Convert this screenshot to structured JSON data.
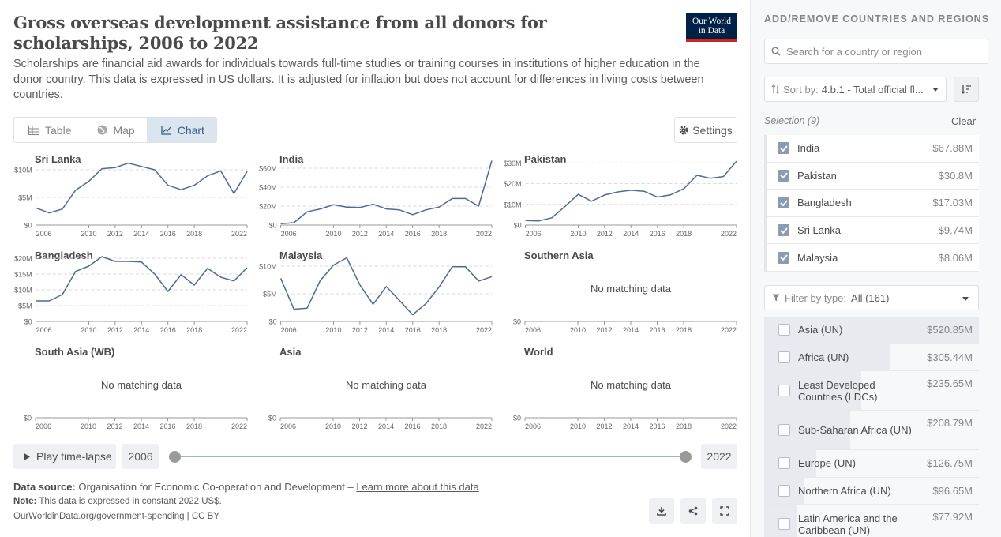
{
  "header": {
    "title": "Gross overseas development assistance from all donors for scholarships, 2006 to 2022",
    "subtitle": "Scholarships are financial aid awards for individuals towards full-time studies or training courses in institutions of higher education in the donor country. This data is expressed in US dollars. It is adjusted for inflation but does not account for differences in living costs between countries.",
    "logo_line1": "Our World",
    "logo_line2": "in Data"
  },
  "tabs": [
    {
      "label": "Table",
      "icon": "table-icon",
      "active": false
    },
    {
      "label": "Map",
      "icon": "globe-icon",
      "active": false
    },
    {
      "label": "Chart",
      "icon": "chart-line-icon",
      "active": true
    }
  ],
  "settings_label": "Settings",
  "no_data_text": "No matching data",
  "chart_data": [
    {
      "type": "line",
      "title": "Sri Lanka",
      "x": [
        2006,
        2007,
        2008,
        2009,
        2010,
        2011,
        2012,
        2013,
        2014,
        2015,
        2016,
        2017,
        2018,
        2019,
        2020,
        2021,
        2022
      ],
      "values": [
        3.1,
        2.2,
        2.9,
        6.3,
        7.9,
        10.2,
        10.4,
        11.2,
        10.6,
        10.0,
        7.2,
        6.4,
        7.2,
        8.9,
        9.8,
        5.7,
        9.7
      ],
      "unit": "M",
      "yticks": [
        "$0",
        "$5M",
        "$10M"
      ],
      "ylim": [
        0,
        12
      ],
      "xticks": [
        2006,
        2010,
        2012,
        2014,
        2016,
        2018,
        2022
      ]
    },
    {
      "type": "line",
      "title": "India",
      "x": [
        2006,
        2007,
        2008,
        2009,
        2010,
        2011,
        2012,
        2013,
        2014,
        2015,
        2016,
        2017,
        2018,
        2019,
        2020,
        2021,
        2022
      ],
      "values": [
        1.5,
        2.5,
        14,
        17,
        21.5,
        19,
        18.5,
        22,
        17,
        16,
        11,
        16,
        19,
        28,
        28,
        20,
        67.9
      ],
      "unit": "M",
      "yticks": [
        "$0",
        "$20M",
        "$40M",
        "$60M"
      ],
      "ylim": [
        0,
        70
      ],
      "xticks": [
        2006,
        2010,
        2012,
        2014,
        2016,
        2018,
        2022
      ]
    },
    {
      "type": "line",
      "title": "Pakistan",
      "x": [
        2006,
        2007,
        2008,
        2009,
        2010,
        2011,
        2012,
        2013,
        2014,
        2015,
        2016,
        2017,
        2018,
        2019,
        2020,
        2021,
        2022
      ],
      "values": [
        2.2,
        2.0,
        3.5,
        9.0,
        14.8,
        11.5,
        14.5,
        16.0,
        16.8,
        16.3,
        13.5,
        14.6,
        17.5,
        24.0,
        22.6,
        23.4,
        30.8
      ],
      "unit": "M",
      "yticks": [
        "$0",
        "$10M",
        "$20M",
        "$30M"
      ],
      "ylim": [
        0,
        32
      ],
      "xticks": [
        2006,
        2010,
        2012,
        2014,
        2016,
        2018,
        2022
      ]
    },
    {
      "type": "line",
      "title": "Bangladesh",
      "x": [
        2006,
        2007,
        2008,
        2009,
        2010,
        2011,
        2012,
        2013,
        2014,
        2015,
        2016,
        2017,
        2018,
        2019,
        2020,
        2021,
        2022
      ],
      "values": [
        6.5,
        6.5,
        8.5,
        15.8,
        17.5,
        20.5,
        19.0,
        19.0,
        18.8,
        15.0,
        9.5,
        14.8,
        11.5,
        16.8,
        14.0,
        12.8,
        17.0
      ],
      "unit": "M",
      "yticks": [
        "$0",
        "$5M",
        "$10M",
        "$15M",
        "$20M"
      ],
      "ylim": [
        0,
        21
      ],
      "xticks": [
        2006,
        2010,
        2012,
        2014,
        2016,
        2018,
        2022
      ]
    },
    {
      "type": "line",
      "title": "Malaysia",
      "x": [
        2006,
        2007,
        2008,
        2009,
        2010,
        2011,
        2012,
        2013,
        2014,
        2015,
        2016,
        2017,
        2018,
        2019,
        2020,
        2021,
        2022
      ],
      "values": [
        7.8,
        2.2,
        2.4,
        7.4,
        10.2,
        11.5,
        6.6,
        3.1,
        6.3,
        3.8,
        1.2,
        3.2,
        6.2,
        9.9,
        9.9,
        7.3,
        8.1
      ],
      "unit": "M",
      "yticks": [
        "$0",
        "$5M",
        "$10M"
      ],
      "ylim": [
        0,
        12
      ],
      "xticks": [
        2006,
        2010,
        2012,
        2014,
        2016,
        2018,
        2022
      ]
    },
    {
      "type": "line",
      "title": "Southern Asia",
      "x": [],
      "values": [],
      "yticks": [
        "$0"
      ],
      "xticks": [
        2006,
        2010,
        2012,
        2014,
        2016,
        2018,
        2022
      ],
      "empty": true
    },
    {
      "type": "line",
      "title": "South Asia (WB)",
      "x": [],
      "values": [],
      "yticks": [
        "$0"
      ],
      "xticks": [
        2006,
        2010,
        2012,
        2014,
        2016,
        2018,
        2022
      ],
      "empty": true
    },
    {
      "type": "line",
      "title": "Asia",
      "x": [],
      "values": [],
      "yticks": [
        "$0"
      ],
      "xticks": [
        2006,
        2010,
        2012,
        2014,
        2016,
        2018,
        2022
      ],
      "empty": true
    },
    {
      "type": "line",
      "title": "World",
      "x": [],
      "values": [],
      "yticks": [
        "$0"
      ],
      "xticks": [
        2006,
        2010,
        2012,
        2014,
        2016,
        2018,
        2022
      ],
      "empty": true
    }
  ],
  "timeline": {
    "play_label": "Play time-lapse",
    "start_year": "2006",
    "end_year": "2022"
  },
  "footer": {
    "source_label": "Data source:",
    "source_text": "Organisation for Economic Co-operation and Development –",
    "learn_more": "Learn more about this data",
    "note_label": "Note:",
    "note_text": "This data is expressed in constant 2022 US$.",
    "credit": "OurWorldinData.org/government-spending | CC BY"
  },
  "sidebar": {
    "title": "ADD/REMOVE COUNTRIES AND REGIONS",
    "search_placeholder": "Search for a country or region",
    "sort_label": "Sort by:",
    "sort_value": "4.b.1 - Total official fl...",
    "selection_label": "Selection (9)",
    "clear_label": "Clear",
    "selected": [
      {
        "name": "India",
        "value": "$67.88M"
      },
      {
        "name": "Pakistan",
        "value": "$30.8M"
      },
      {
        "name": "Bangladesh",
        "value": "$17.03M"
      },
      {
        "name": "Sri Lanka",
        "value": "$9.74M"
      },
      {
        "name": "Malaysia",
        "value": "$8.06M"
      }
    ],
    "filter_label": "Filter by type:",
    "filter_value": "All (161)",
    "available": [
      {
        "name": "Asia (UN)",
        "value": "$520.85M",
        "share": 1.0
      },
      {
        "name": "Africa (UN)",
        "value": "$305.44M",
        "share": 0.586
      },
      {
        "name": "Least Developed Countries (LDCs)",
        "value": "$235.65M",
        "share": 0.452
      },
      {
        "name": "Sub-Saharan Africa (UN)",
        "value": "$208.79M",
        "share": 0.401
      },
      {
        "name": "Europe (UN)",
        "value": "$126.75M",
        "share": 0.243
      },
      {
        "name": "Northern Africa (UN)",
        "value": "$96.65M",
        "share": 0.186
      },
      {
        "name": "Latin America and the Caribbean (UN)",
        "value": "$77.92M",
        "share": 0.15
      }
    ]
  }
}
